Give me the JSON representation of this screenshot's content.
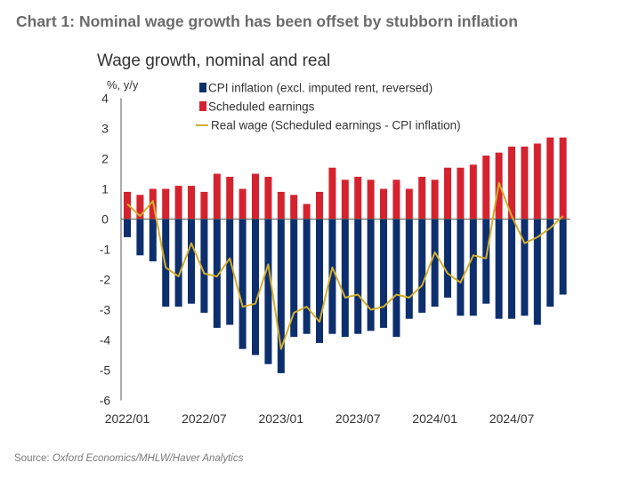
{
  "header": {
    "title": "Chart 1: Nominal wage growth has been offset by stubborn inflation"
  },
  "chart_data": {
    "type": "bar",
    "title": "Wage growth, nominal and real",
    "ylabel": "%, y/y",
    "xlabel": "",
    "ylim": [
      -6,
      4
    ],
    "yticks": [
      4,
      3,
      2,
      1,
      0,
      -1,
      -2,
      -3,
      -4,
      -5,
      -6
    ],
    "x_tick_labels": [
      "2022/01",
      "2022/07",
      "2023/01",
      "2023/07",
      "2024/01",
      "2024/07"
    ],
    "x_tick_positions": [
      0,
      6,
      12,
      18,
      24,
      30
    ],
    "months": [
      "2022/01",
      "2022/02",
      "2022/03",
      "2022/04",
      "2022/05",
      "2022/06",
      "2022/07",
      "2022/08",
      "2022/09",
      "2022/10",
      "2022/11",
      "2022/12",
      "2023/01",
      "2023/02",
      "2023/03",
      "2023/04",
      "2023/05",
      "2023/06",
      "2023/07",
      "2023/08",
      "2023/09",
      "2023/10",
      "2023/11",
      "2023/12",
      "2024/01",
      "2024/02",
      "2024/03",
      "2024/04",
      "2024/05",
      "2024/06",
      "2024/07",
      "2024/08",
      "2024/09",
      "2024/10",
      "2024/11"
    ],
    "legend_position": "top",
    "colors": {
      "cpi": "#0d2f6e",
      "scheduled": "#d4232e",
      "real": "#d4ae2a",
      "axis": "#595959"
    },
    "series": [
      {
        "name": "CPI inflation (excl. imputed rent, reversed)",
        "kind": "bar",
        "values": [
          -0.6,
          -1.2,
          -1.4,
          -2.9,
          -2.9,
          -2.8,
          -3.1,
          -3.6,
          -3.5,
          -4.3,
          -4.5,
          -4.8,
          -5.1,
          -3.9,
          -3.8,
          -4.1,
          -3.8,
          -3.9,
          -3.8,
          -3.7,
          -3.6,
          -3.9,
          -3.3,
          -3.1,
          -2.9,
          -2.6,
          -3.2,
          -3.2,
          -2.8,
          -3.3,
          -3.3,
          -3.2,
          -3.5,
          -2.9,
          -2.5
        ]
      },
      {
        "name": "Scheduled earnings",
        "kind": "bar",
        "values": [
          0.9,
          0.8,
          1.0,
          1.0,
          1.1,
          1.1,
          0.9,
          1.5,
          1.4,
          1.0,
          1.5,
          1.4,
          0.9,
          0.8,
          0.5,
          0.9,
          1.7,
          1.3,
          1.4,
          1.3,
          1.0,
          1.3,
          1.0,
          1.4,
          1.3,
          1.7,
          1.7,
          1.8,
          2.1,
          2.2,
          2.4,
          2.4,
          2.5,
          2.7,
          2.7
        ]
      },
      {
        "name": "Real wage (Scheduled earnings - CPI inflation)",
        "kind": "line",
        "values": [
          0.5,
          0.1,
          0.6,
          -1.6,
          -1.9,
          -0.8,
          -1.8,
          -1.9,
          -1.3,
          -2.9,
          -2.8,
          -1.5,
          -4.3,
          -3.1,
          -2.9,
          -3.4,
          -1.6,
          -2.6,
          -2.5,
          -3.0,
          -2.9,
          -2.5,
          -2.6,
          -2.2,
          -1.1,
          -1.8,
          -2.1,
          -1.2,
          -1.3,
          1.2,
          0.1,
          -0.8,
          -0.6,
          -0.3,
          0.1
        ]
      }
    ]
  },
  "source": {
    "label": "Source: ",
    "text": "Oxford Economics/MHLW/Haver Analytics"
  }
}
